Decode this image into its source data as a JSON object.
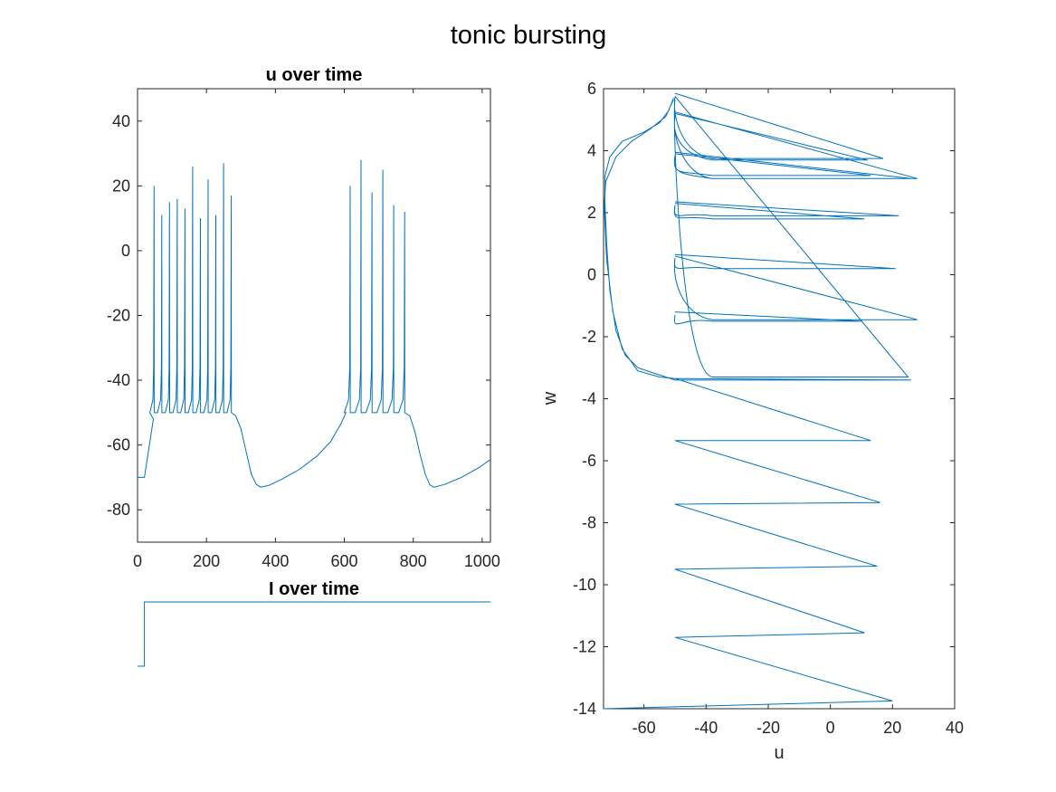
{
  "figure": {
    "title": "tonic bursting"
  },
  "colors": {
    "line": "#0072BD",
    "axis": "#262626"
  },
  "chart_data": [
    {
      "id": "u_time",
      "type": "line",
      "title": "u over time",
      "xlabel": "",
      "ylabel": "",
      "xlim": [
        0,
        1024
      ],
      "ylim": [
        -90,
        50
      ],
      "xticks": [
        0,
        200,
        400,
        600,
        800,
        1000
      ],
      "yticks": [
        -80,
        -60,
        -40,
        -20,
        0,
        20,
        40
      ],
      "grid": false,
      "rest": -70,
      "stim_onset": 20,
      "bursts": [
        {
          "peaks": [
            20,
            11,
            15,
            16,
            13,
            26,
            10,
            22,
            11,
            27,
            17
          ],
          "t0": 48,
          "t1": 272
        },
        {
          "peaks": [
            20,
            28,
            18,
            25,
            14,
            12
          ],
          "t0": 617,
          "t1": 775
        }
      ],
      "reset": -50,
      "trough": -73
    },
    {
      "id": "i_time",
      "type": "line",
      "title": "I over time",
      "xlim": [
        0,
        1024
      ],
      "ylim": [
        0,
        1
      ],
      "low": 0,
      "high": 1,
      "step_at": 20,
      "axes_visible": false
    },
    {
      "id": "phase",
      "type": "line",
      "title": "",
      "xlabel": "u",
      "ylabel": "w",
      "xlim": [
        -73,
        40
      ],
      "ylim": [
        -14,
        6
      ],
      "xticks": [
        -60,
        -40,
        -20,
        0,
        20,
        40
      ],
      "yticks": [
        -14,
        -12,
        -10,
        -8,
        -6,
        -4,
        -2,
        0,
        2,
        4,
        6
      ],
      "grid": false,
      "initial_spikes": [
        {
          "w_reset": -14.0,
          "u_peak": 20,
          "w_peak": -13.75
        },
        {
          "w_reset": -11.7,
          "u_peak": 11,
          "w_peak": -11.55
        },
        {
          "w_reset": -9.5,
          "u_peak": 15,
          "w_peak": -9.4
        },
        {
          "w_reset": -7.4,
          "u_peak": 16,
          "w_peak": -7.35
        },
        {
          "w_reset": -5.35,
          "u_peak": 13,
          "w_peak": -5.35
        },
        {
          "w_reset": -3.35,
          "u_peak": 26,
          "w_peak": -3.4
        }
      ],
      "cycle_spikes": [
        {
          "w_reset": -1.3,
          "u_peak": 10,
          "w_peak": -1.5
        },
        {
          "w_reset": 0.5,
          "u_peak": 28,
          "w_peak": -1.45
        },
        {
          "w_reset": 0.55,
          "u_peak": 21,
          "w_peak": 0.2
        },
        {
          "w_reset": 2.25,
          "u_peak": 22,
          "w_peak": 1.9
        },
        {
          "w_reset": 2.2,
          "u_peak": 11,
          "w_peak": 1.8
        },
        {
          "w_reset": 3.85,
          "u_peak": 26,
          "w_peak": 3.1
        },
        {
          "w_reset": 3.8,
          "u_peak": 13,
          "w_peak": 3.2
        },
        {
          "w_reset": 5.15,
          "u_peak": 28,
          "w_peak": 3.1
        },
        {
          "w_reset": 5.1,
          "u_peak": 12,
          "w_peak": 3.7
        },
        {
          "w_reset": 5.75,
          "u_peak": 17,
          "w_peak": 3.75
        },
        {
          "w_reset": 5.65,
          "u_peak": 25,
          "w_peak": -3.3
        }
      ]
    }
  ]
}
